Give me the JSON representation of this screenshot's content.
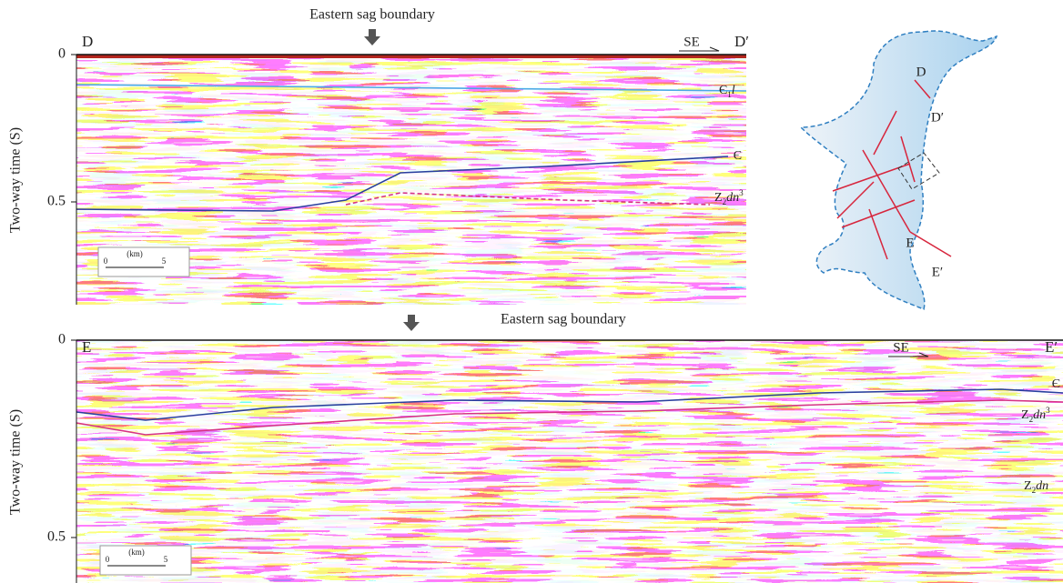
{
  "panels": [
    {
      "left_label": "D",
      "right_label": "D′",
      "direction": "SE",
      "boundary_label": "Eastern sag boundary",
      "y_axis_label": "Two-way time (S)",
      "yticks": [
        "0",
        "0.5"
      ],
      "horizons": [
        [
          {
            "text": "Є"
          },
          {
            "text": "1",
            "style": "sub"
          },
          {
            "text": "l",
            "style": "italic"
          }
        ],
        [
          {
            "text": "Є"
          }
        ],
        [
          {
            "text": "Z"
          },
          {
            "text": "2",
            "style": "sub"
          },
          {
            "text": "dn",
            "style": "italic"
          },
          {
            "text": "3",
            "style": "sup"
          }
        ]
      ],
      "scale": {
        "unit": "(km)",
        "start": "0",
        "end": "5"
      }
    },
    {
      "left_label": "E",
      "right_label": "E′",
      "direction": "SE",
      "boundary_label": "Eastern sag boundary",
      "y_axis_label": "Two-way time (S)",
      "yticks": [
        "0",
        "0.5"
      ],
      "horizons": [
        [
          {
            "text": "Є"
          }
        ],
        [
          {
            "text": "Z"
          },
          {
            "text": "2",
            "style": "sub"
          },
          {
            "text": "dn",
            "style": "italic"
          },
          {
            "text": "3",
            "style": "sup"
          }
        ],
        [
          {
            "text": "Z"
          },
          {
            "text": "2",
            "style": "sub"
          },
          {
            "text": "dn",
            "style": "italic"
          }
        ]
      ],
      "scale": {
        "unit": "(km)",
        "start": "0",
        "end": "5"
      }
    }
  ],
  "map": {
    "labels": [
      "D",
      "D′",
      "E",
      "E′"
    ]
  }
}
